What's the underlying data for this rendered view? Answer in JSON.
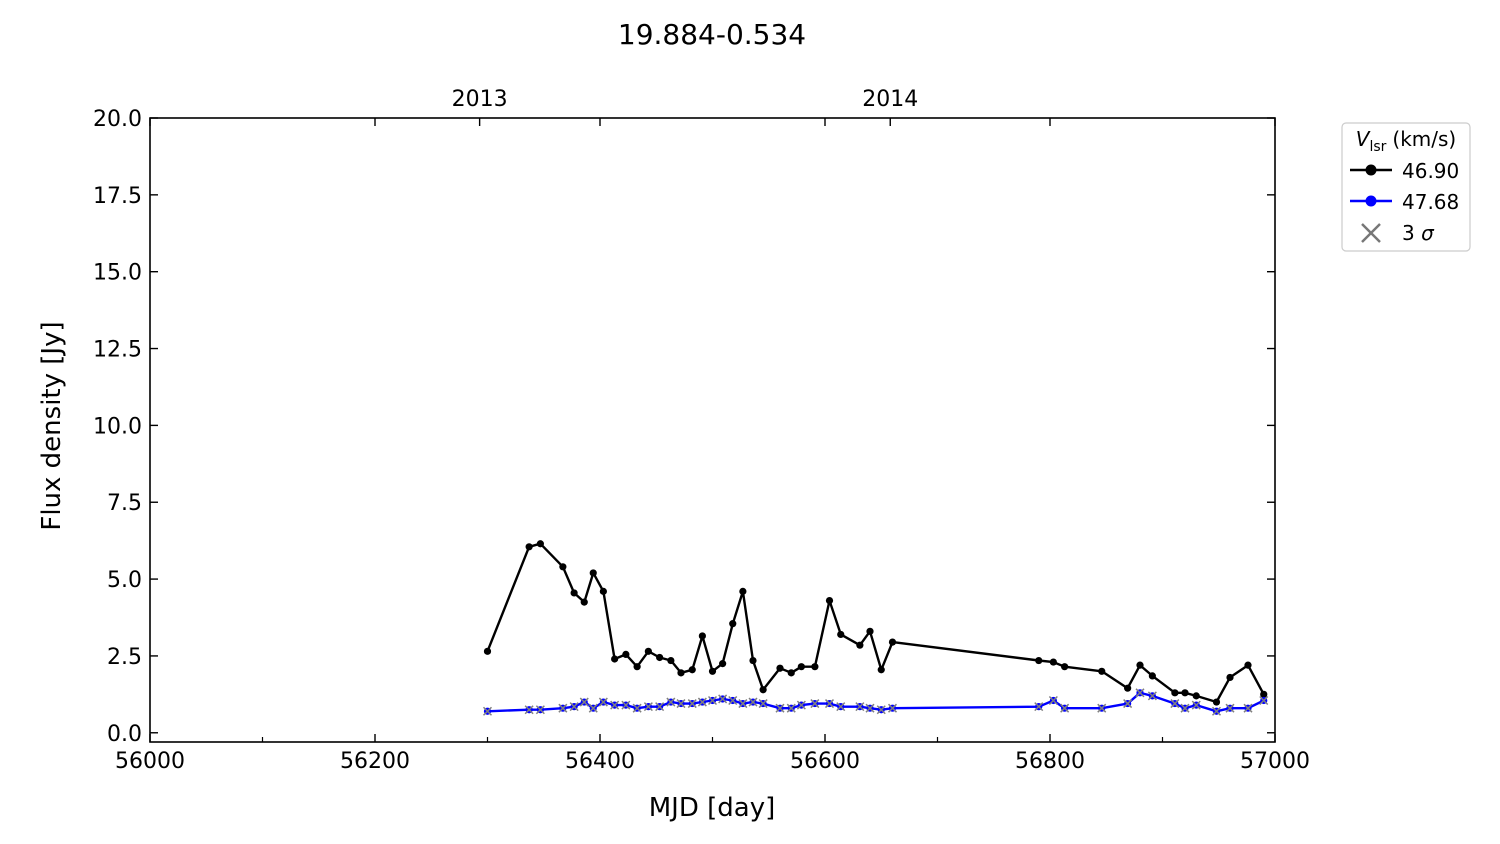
{
  "chart_data": {
    "type": "line",
    "title": "19.884-0.534",
    "xlabel": "MJD [day]",
    "ylabel": "Flux density [Jy]",
    "xlim": [
      56000,
      57000
    ],
    "ylim": [
      -0.3,
      20.0
    ],
    "x_ticks": [
      56000,
      56200,
      56400,
      56600,
      56800,
      57000
    ],
    "x_tick_labels": [
      "56000",
      "56200",
      "56400",
      "56600",
      "56800",
      "57000"
    ],
    "y_ticks": [
      0.0,
      2.5,
      5.0,
      7.5,
      10.0,
      12.5,
      15.0,
      17.5,
      20.0
    ],
    "y_tick_labels": [
      "0.0",
      "2.5",
      "5.0",
      "7.5",
      "10.0",
      "12.5",
      "15.0",
      "17.5",
      "20.0"
    ],
    "top_axis": {
      "ticks": [
        56293,
        56658
      ],
      "labels": [
        "2013",
        "2014"
      ]
    },
    "grid": false,
    "legend": {
      "title_main": "V",
      "title_sub": "lsr",
      "title_unit": "(km/s)",
      "placement": "outside-top-right",
      "sigma_label_prefix": "3 ",
      "sigma_label_symbol": "σ"
    },
    "series": [
      {
        "name": "46.90",
        "color": "#000000",
        "marker": "circle",
        "x": [
          56300,
          56337,
          56347,
          56367,
          56377,
          56386,
          56394,
          56403,
          56413,
          56423,
          56433,
          56443,
          56453,
          56463,
          56472,
          56482,
          56491,
          56500,
          56509,
          56518,
          56527,
          56536,
          56545,
          56560,
          56570,
          56579,
          56591,
          56604,
          56614,
          56631,
          56640,
          56650,
          56660,
          56790,
          56803,
          56813,
          56846,
          56869,
          56880,
          56891,
          56911,
          56920,
          56930,
          56948,
          56960,
          56976,
          56990
        ],
        "y": [
          2.65,
          6.05,
          6.15,
          5.4,
          4.55,
          4.25,
          5.2,
          4.6,
          2.4,
          2.55,
          2.15,
          2.65,
          2.45,
          2.35,
          1.95,
          2.05,
          3.15,
          2.0,
          2.25,
          3.55,
          4.6,
          2.35,
          1.4,
          2.1,
          1.95,
          2.15,
          2.15,
          4.3,
          3.2,
          2.85,
          3.3,
          2.05,
          2.95,
          2.35,
          2.3,
          2.15,
          2.0,
          1.45,
          2.2,
          1.85,
          1.3,
          1.3,
          1.2,
          1.0,
          1.8,
          2.2,
          1.25
        ]
      },
      {
        "name": "47.68",
        "color": "#0000ff",
        "marker": "circle",
        "x": [
          56300,
          56337,
          56347,
          56367,
          56377,
          56386,
          56394,
          56403,
          56413,
          56423,
          56433,
          56443,
          56453,
          56463,
          56472,
          56482,
          56491,
          56500,
          56509,
          56518,
          56527,
          56536,
          56545,
          56560,
          56570,
          56579,
          56591,
          56604,
          56614,
          56631,
          56640,
          56650,
          56660,
          56790,
          56803,
          56813,
          56846,
          56869,
          56880,
          56891,
          56911,
          56920,
          56930,
          56948,
          56960,
          56976,
          56990
        ],
        "y": [
          0.7,
          0.75,
          0.75,
          0.8,
          0.85,
          1.0,
          0.8,
          1.0,
          0.9,
          0.9,
          0.8,
          0.85,
          0.85,
          1.0,
          0.95,
          0.95,
          1.0,
          1.05,
          1.1,
          1.05,
          0.95,
          1.0,
          0.95,
          0.8,
          0.8,
          0.9,
          0.95,
          0.95,
          0.85,
          0.85,
          0.8,
          0.75,
          0.8,
          0.85,
          1.05,
          0.8,
          0.8,
          0.95,
          1.3,
          1.2,
          0.95,
          0.8,
          0.9,
          0.7,
          0.8,
          0.8,
          1.05
        ]
      }
    ],
    "three_sigma": {
      "name": "3 σ",
      "color": "#808080",
      "marker": "x",
      "x": [
        56300,
        56337,
        56347,
        56367,
        56377,
        56386,
        56394,
        56403,
        56413,
        56423,
        56433,
        56443,
        56453,
        56463,
        56472,
        56482,
        56491,
        56500,
        56509,
        56518,
        56527,
        56536,
        56545,
        56560,
        56570,
        56579,
        56591,
        56604,
        56614,
        56631,
        56640,
        56650,
        56660,
        56790,
        56803,
        56813,
        56846,
        56869,
        56880,
        56891,
        56911,
        56920,
        56930,
        56948,
        56960,
        56976,
        56990
      ],
      "y": [
        0.7,
        0.75,
        0.75,
        0.8,
        0.85,
        1.0,
        0.8,
        1.0,
        0.9,
        0.9,
        0.8,
        0.85,
        0.85,
        1.0,
        0.95,
        0.95,
        1.0,
        1.05,
        1.1,
        1.05,
        0.95,
        1.0,
        0.95,
        0.8,
        0.8,
        0.9,
        0.95,
        0.95,
        0.85,
        0.85,
        0.8,
        0.75,
        0.8,
        0.85,
        1.05,
        0.8,
        0.8,
        0.95,
        1.3,
        1.2,
        0.95,
        0.8,
        0.9,
        0.7,
        0.8,
        0.8,
        1.05
      ]
    }
  }
}
